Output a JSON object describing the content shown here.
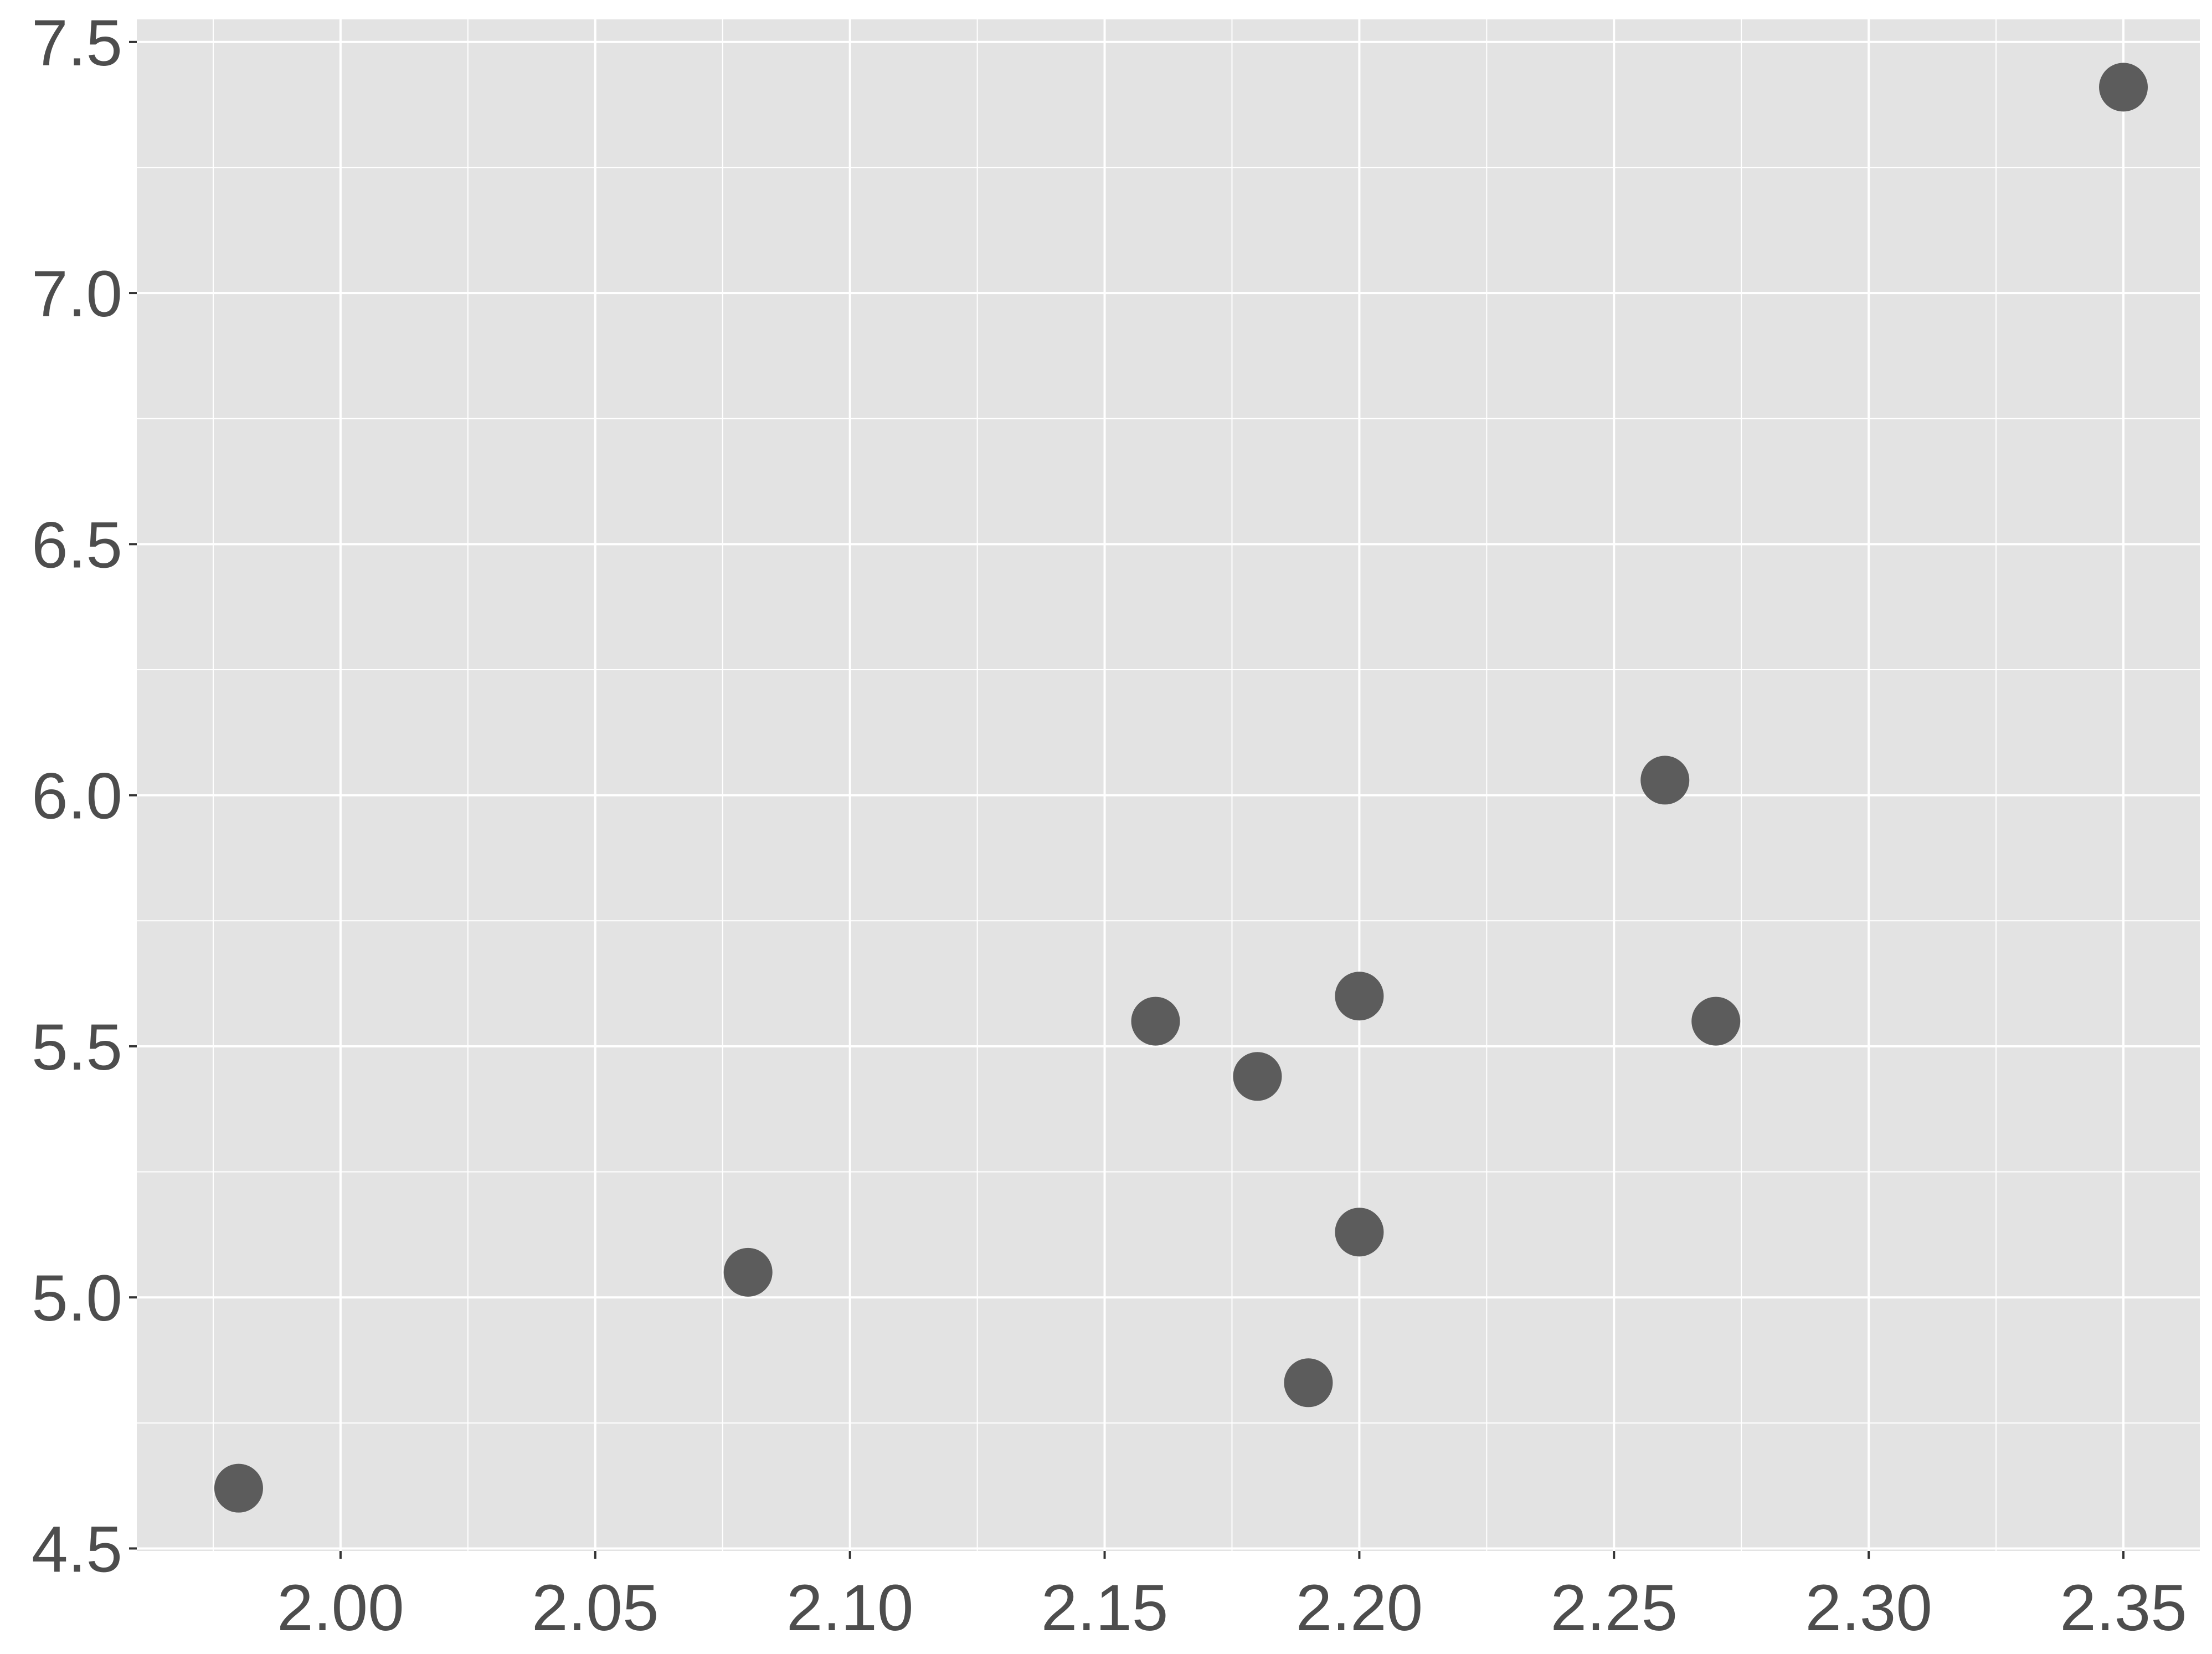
{
  "chart_data": {
    "type": "scatter",
    "title": "",
    "xlabel": "",
    "ylabel": "",
    "xlim": [
      1.96,
      2.365
    ],
    "ylim": [
      4.495,
      7.545
    ],
    "grid": true,
    "legend": "none",
    "x_ticks": [
      "2.00",
      "2.05",
      "2.10",
      "2.15",
      "2.20",
      "2.25",
      "2.30",
      "2.35"
    ],
    "y_ticks": [
      "4.5",
      "5.0",
      "5.5",
      "6.0",
      "6.5",
      "7.0",
      "7.5"
    ],
    "x_tick_values": [
      2.0,
      2.05,
      2.1,
      2.15,
      2.2,
      2.25,
      2.3,
      2.35
    ],
    "y_tick_values": [
      4.5,
      5.0,
      5.5,
      6.0,
      6.5,
      7.0,
      7.5
    ],
    "series": [
      {
        "points": [
          {
            "x": 1.98,
            "y": 4.62
          },
          {
            "x": 2.08,
            "y": 5.05
          },
          {
            "x": 2.16,
            "y": 5.55
          },
          {
            "x": 2.18,
            "y": 5.44
          },
          {
            "x": 2.19,
            "y": 4.83
          },
          {
            "x": 2.2,
            "y": 5.6
          },
          {
            "x": 2.2,
            "y": 5.13
          },
          {
            "x": 2.26,
            "y": 6.03
          },
          {
            "x": 2.27,
            "y": 5.55
          },
          {
            "x": 2.35,
            "y": 7.41
          }
        ]
      }
    ],
    "colors": {
      "panel_background": "#e3e3e3",
      "grid": "#ffffff",
      "point": "#5c5c5c",
      "tick_label": "#4d4d4d",
      "tick_mark": "#333333"
    }
  }
}
